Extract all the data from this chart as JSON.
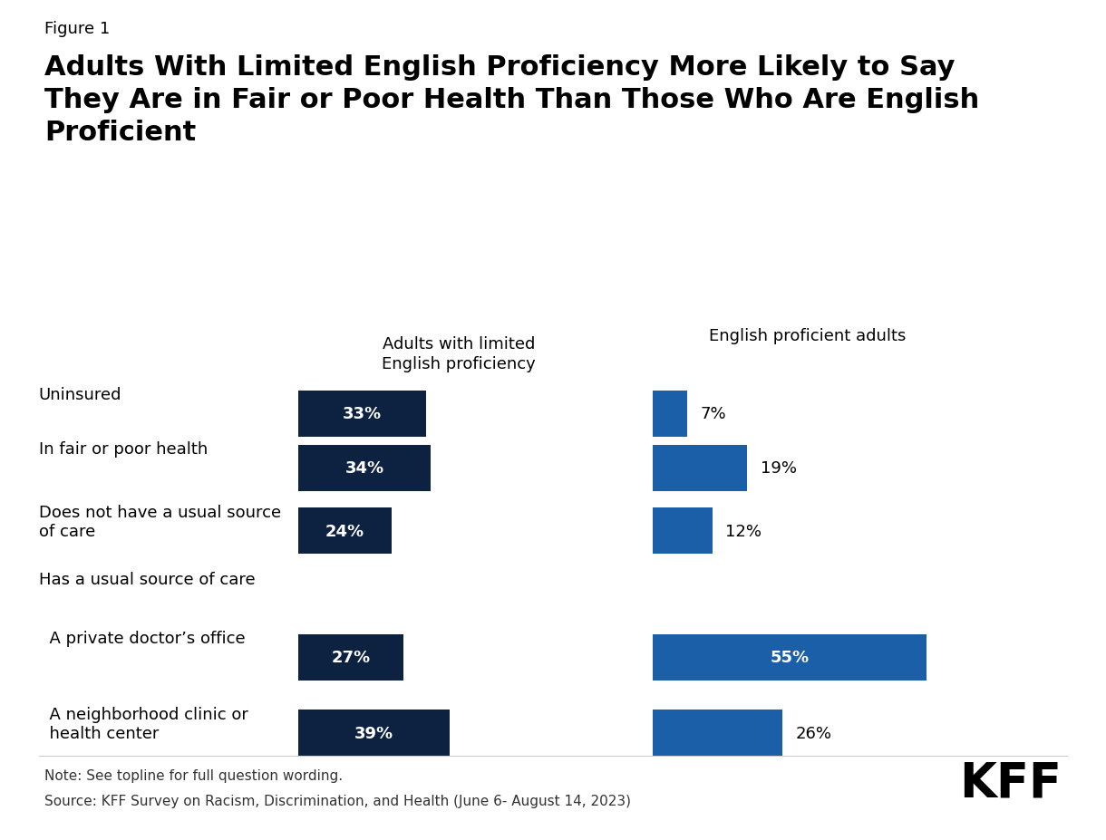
{
  "figure_label": "Figure 1",
  "title": "Adults With Limited English Proficiency More Likely to Say\nThey Are in Fair or Poor Health Than Those Who Are English\nProficient",
  "categories": [
    "Uninsured",
    "In fair or poor health",
    "Does not have a usual source\nof care",
    "Has a usual source of care",
    "  A private doctor’s office",
    "  A neighborhood clinic or\n  health center"
  ],
  "lep_values": [
    33,
    34,
    24,
    null,
    27,
    39
  ],
  "ep_values": [
    7,
    19,
    12,
    null,
    55,
    26
  ],
  "lep_color": "#0d2240",
  "ep_color": "#1a5fa8",
  "lep_header": "Adults with limited\nEnglish proficiency",
  "ep_header": "English proficient adults",
  "note": "Note: See topline for full question wording.",
  "source": "Source: KFF Survey on Racism, Discrimination, and Health (June 6- August 14, 2023)",
  "kff_logo": "KFF",
  "background_color": "#ffffff",
  "text_color": "#000000",
  "max_value": 60
}
